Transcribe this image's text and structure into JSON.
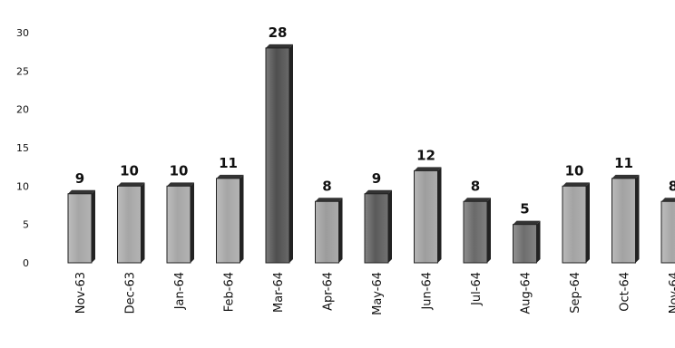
{
  "chart_data": {
    "type": "bar",
    "title": "",
    "xlabel": "",
    "ylabel": "",
    "ylim": [
      0,
      30
    ],
    "yticks": [
      0,
      5,
      10,
      15,
      20,
      25,
      30
    ],
    "grid": false,
    "legend": "none",
    "categories": [
      "Nov-63",
      "Dec-63",
      "Jan-64",
      "Feb-64",
      "Mar-64",
      "Apr-64",
      "May-64",
      "Jun-64",
      "Jul-64",
      "Aug-64",
      "Sep-64",
      "Oct-64",
      "Nov-64"
    ],
    "values": [
      9,
      10,
      10,
      11,
      28,
      8,
      9,
      12,
      8,
      5,
      10,
      11,
      8
    ],
    "bar_colors": [
      "#a6a6a6",
      "#a6a6a6",
      "#a6a6a6",
      "#a6a6a6",
      "#4f4f4f",
      "#9c9c9c",
      "#5a5a5a",
      "#9e9e9e",
      "#6a6a6a",
      "#6e6e6e",
      "#a3a3a3",
      "#a3a3a3",
      "#a6a6a6"
    ]
  }
}
